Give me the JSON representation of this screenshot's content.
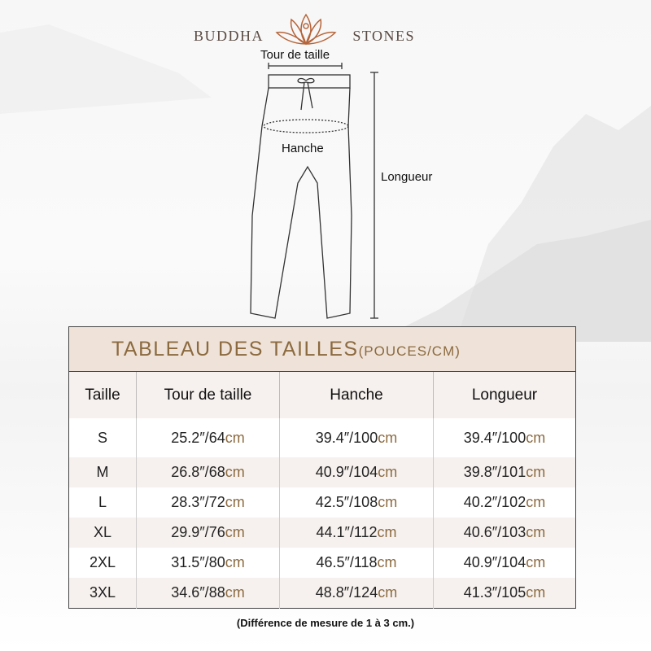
{
  "brand": {
    "left": "BUDDHA",
    "right": "STONES",
    "accent": "#8c6a3f"
  },
  "diagram": {
    "waist": "Tour de taille",
    "hip": "Hanche",
    "length": "Longueur"
  },
  "table": {
    "title": "TABLEAU DES TAILLES",
    "title_unit": "(POUCES/CM)",
    "headers": [
      "Taille",
      "Tour de taille",
      "Hanche",
      "Longueur"
    ],
    "rows": [
      [
        "S",
        "25.2″/64",
        "39.4″/100",
        "39.4″/100"
      ],
      [
        "M",
        "26.8″/68",
        "40.9″/104",
        "39.8″/101"
      ],
      [
        "L",
        "28.3″/72",
        "42.5″/108",
        "40.2″/102"
      ],
      [
        "XL",
        "29.9″/76",
        "44.1″/112",
        "40.6″/103"
      ],
      [
        "2XL",
        "31.5″/80",
        "46.5″/118",
        "40.9″/104"
      ],
      [
        "3XL",
        "34.6″/88",
        "48.8″/124",
        "41.3″/105"
      ]
    ],
    "unit": "cm"
  },
  "note": "(Différence de mesure de 1 à 3 cm.)"
}
